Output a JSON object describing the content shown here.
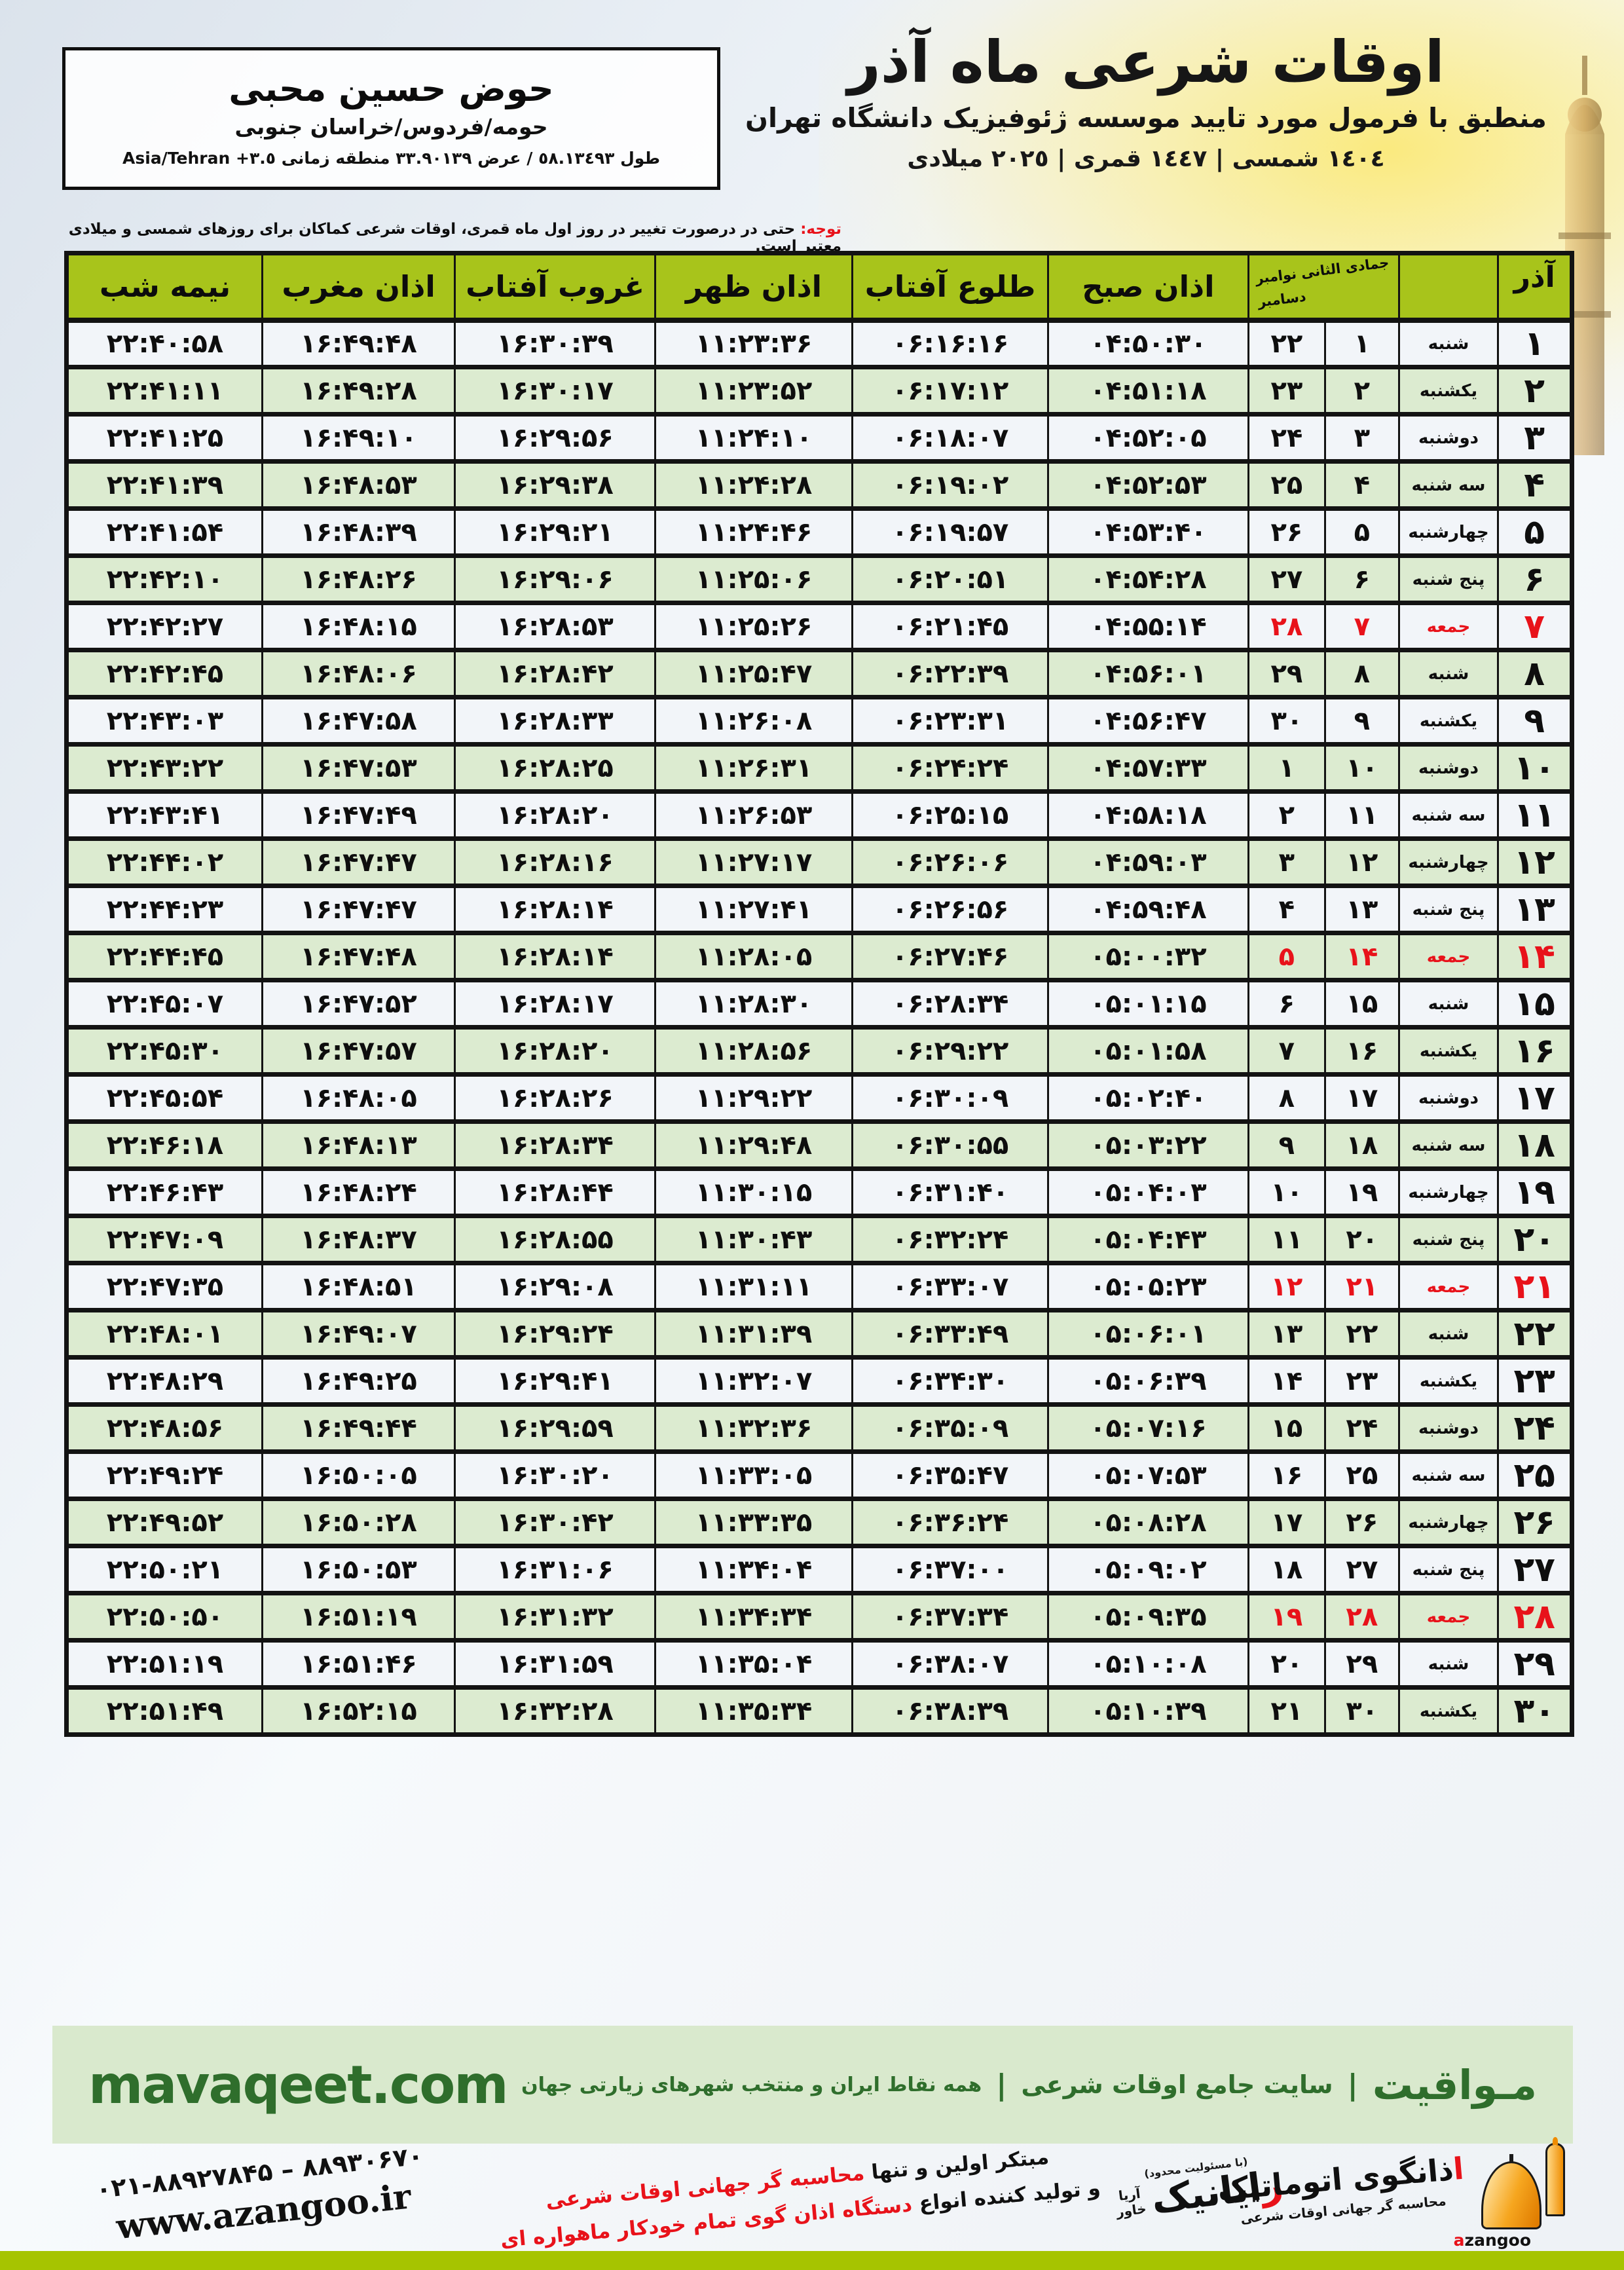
{
  "header": {
    "title": "اوقات شرعی ماه آذر",
    "subtitle": "منطبق با فرمول مورد تایید موسسه ژئوفیزیک دانشگاه تهران",
    "date_line": "١٤٠٤ شمسی | ١٤٤٧ قمری | ٢٠٢٥ میلادی"
  },
  "location_box": {
    "name": "حوض حسین محبی",
    "region": "حومه/فردوس/خراسان جنوبی",
    "coords": "طول ٥٨.١٣٤٩٣ / عرض ٣٣.٩٠١٣٩ منطقه زمانی",
    "timezone": "Asia/Tehran +٣.٥"
  },
  "notice": {
    "label": "توجه:",
    "text": " حتی در درصورت تغییر در روز اول ماه قمری، اوقات شرعی کماکان برای روزهای شمسی و میلادی معتبر است."
  },
  "table": {
    "month_label": "آذر",
    "sub_header_line1": "جمادی الثانی نوامبر",
    "sub_header_line2": "دسامبر",
    "columns": {
      "sobh": "اذان صبح",
      "tolu": "طلوع آفتاب",
      "zohr": "اذان ظهر",
      "ghorub": "غروب آفتاب",
      "maghreb": "اذان مغرب",
      "nimeshab": "نیمه شب"
    },
    "rows": [
      {
        "azar": "۱",
        "weekday": "شنبه",
        "lunar": "۱",
        "greg": "۲۲",
        "sobh": "۰۴:۵۰:۳۰",
        "tolu": "۰۶:۱۶:۱۶",
        "zohr": "۱۱:۲۳:۳۶",
        "ghorub": "۱۶:۳۰:۳۹",
        "maghreb": "۱۶:۴۹:۴۸",
        "nimeshab": "۲۲:۴۰:۵۸",
        "friday": false
      },
      {
        "azar": "۲",
        "weekday": "یکشنبه",
        "lunar": "۲",
        "greg": "۲۳",
        "sobh": "۰۴:۵۱:۱۸",
        "tolu": "۰۶:۱۷:۱۲",
        "zohr": "۱۱:۲۳:۵۲",
        "ghorub": "۱۶:۳۰:۱۷",
        "maghreb": "۱۶:۴۹:۲۸",
        "nimeshab": "۲۲:۴۱:۱۱",
        "friday": false
      },
      {
        "azar": "۳",
        "weekday": "دوشنبه",
        "lunar": "۳",
        "greg": "۲۴",
        "sobh": "۰۴:۵۲:۰۵",
        "tolu": "۰۶:۱۸:۰۷",
        "zohr": "۱۱:۲۴:۱۰",
        "ghorub": "۱۶:۲۹:۵۶",
        "maghreb": "۱۶:۴۹:۱۰",
        "nimeshab": "۲۲:۴۱:۲۵",
        "friday": false
      },
      {
        "azar": "۴",
        "weekday": "سه شنبه",
        "lunar": "۴",
        "greg": "۲۵",
        "sobh": "۰۴:۵۲:۵۳",
        "tolu": "۰۶:۱۹:۰۲",
        "zohr": "۱۱:۲۴:۲۸",
        "ghorub": "۱۶:۲۹:۳۸",
        "maghreb": "۱۶:۴۸:۵۳",
        "nimeshab": "۲۲:۴۱:۳۹",
        "friday": false
      },
      {
        "azar": "۵",
        "weekday": "چهارشنبه",
        "lunar": "۵",
        "greg": "۲۶",
        "sobh": "۰۴:۵۳:۴۰",
        "tolu": "۰۶:۱۹:۵۷",
        "zohr": "۱۱:۲۴:۴۶",
        "ghorub": "۱۶:۲۹:۲۱",
        "maghreb": "۱۶:۴۸:۳۹",
        "nimeshab": "۲۲:۴۱:۵۴",
        "friday": false
      },
      {
        "azar": "۶",
        "weekday": "پنج شنبه",
        "lunar": "۶",
        "greg": "۲۷",
        "sobh": "۰۴:۵۴:۲۸",
        "tolu": "۰۶:۲۰:۵۱",
        "zohr": "۱۱:۲۵:۰۶",
        "ghorub": "۱۶:۲۹:۰۶",
        "maghreb": "۱۶:۴۸:۲۶",
        "nimeshab": "۲۲:۴۲:۱۰",
        "friday": false
      },
      {
        "azar": "۷",
        "weekday": "جمعه",
        "lunar": "۷",
        "greg": "۲۸",
        "sobh": "۰۴:۵۵:۱۴",
        "tolu": "۰۶:۲۱:۴۵",
        "zohr": "۱۱:۲۵:۲۶",
        "ghorub": "۱۶:۲۸:۵۳",
        "maghreb": "۱۶:۴۸:۱۵",
        "nimeshab": "۲۲:۴۲:۲۷",
        "friday": true
      },
      {
        "azar": "۸",
        "weekday": "شنبه",
        "lunar": "۸",
        "greg": "۲۹",
        "sobh": "۰۴:۵۶:۰۱",
        "tolu": "۰۶:۲۲:۳۹",
        "zohr": "۱۱:۲۵:۴۷",
        "ghorub": "۱۶:۲۸:۴۲",
        "maghreb": "۱۶:۴۸:۰۶",
        "nimeshab": "۲۲:۴۲:۴۵",
        "friday": false
      },
      {
        "azar": "۹",
        "weekday": "یکشنبه",
        "lunar": "۹",
        "greg": "۳۰",
        "sobh": "۰۴:۵۶:۴۷",
        "tolu": "۰۶:۲۳:۳۱",
        "zohr": "۱۱:۲۶:۰۸",
        "ghorub": "۱۶:۲۸:۳۳",
        "maghreb": "۱۶:۴۷:۵۸",
        "nimeshab": "۲۲:۴۳:۰۳",
        "friday": false
      },
      {
        "azar": "۱۰",
        "weekday": "دوشنبه",
        "lunar": "۱۰",
        "greg": "۱",
        "sobh": "۰۴:۵۷:۳۳",
        "tolu": "۰۶:۲۴:۲۴",
        "zohr": "۱۱:۲۶:۳۱",
        "ghorub": "۱۶:۲۸:۲۵",
        "maghreb": "۱۶:۴۷:۵۳",
        "nimeshab": "۲۲:۴۳:۲۲",
        "friday": false
      },
      {
        "azar": "۱۱",
        "weekday": "سه شنبه",
        "lunar": "۱۱",
        "greg": "۲",
        "sobh": "۰۴:۵۸:۱۸",
        "tolu": "۰۶:۲۵:۱۵",
        "zohr": "۱۱:۲۶:۵۳",
        "ghorub": "۱۶:۲۸:۲۰",
        "maghreb": "۱۶:۴۷:۴۹",
        "nimeshab": "۲۲:۴۳:۴۱",
        "friday": false
      },
      {
        "azar": "۱۲",
        "weekday": "چهارشنبه",
        "lunar": "۱۲",
        "greg": "۳",
        "sobh": "۰۴:۵۹:۰۳",
        "tolu": "۰۶:۲۶:۰۶",
        "zohr": "۱۱:۲۷:۱۷",
        "ghorub": "۱۶:۲۸:۱۶",
        "maghreb": "۱۶:۴۷:۴۷",
        "nimeshab": "۲۲:۴۴:۰۲",
        "friday": false
      },
      {
        "azar": "۱۳",
        "weekday": "پنج شنبه",
        "lunar": "۱۳",
        "greg": "۴",
        "sobh": "۰۴:۵۹:۴۸",
        "tolu": "۰۶:۲۶:۵۶",
        "zohr": "۱۱:۲۷:۴۱",
        "ghorub": "۱۶:۲۸:۱۴",
        "maghreb": "۱۶:۴۷:۴۷",
        "nimeshab": "۲۲:۴۴:۲۳",
        "friday": false
      },
      {
        "azar": "۱۴",
        "weekday": "جمعه",
        "lunar": "۱۴",
        "greg": "۵",
        "sobh": "۰۵:۰۰:۳۲",
        "tolu": "۰۶:۲۷:۴۶",
        "zohr": "۱۱:۲۸:۰۵",
        "ghorub": "۱۶:۲۸:۱۴",
        "maghreb": "۱۶:۴۷:۴۸",
        "nimeshab": "۲۲:۴۴:۴۵",
        "friday": true
      },
      {
        "azar": "۱۵",
        "weekday": "شنبه",
        "lunar": "۱۵",
        "greg": "۶",
        "sobh": "۰۵:۰۱:۱۵",
        "tolu": "۰۶:۲۸:۳۴",
        "zohr": "۱۱:۲۸:۳۰",
        "ghorub": "۱۶:۲۸:۱۷",
        "maghreb": "۱۶:۴۷:۵۲",
        "nimeshab": "۲۲:۴۵:۰۷",
        "friday": false
      },
      {
        "azar": "۱۶",
        "weekday": "یکشنبه",
        "lunar": "۱۶",
        "greg": "۷",
        "sobh": "۰۵:۰۱:۵۸",
        "tolu": "۰۶:۲۹:۲۲",
        "zohr": "۱۱:۲۸:۵۶",
        "ghorub": "۱۶:۲۸:۲۰",
        "maghreb": "۱۶:۴۷:۵۷",
        "nimeshab": "۲۲:۴۵:۳۰",
        "friday": false
      },
      {
        "azar": "۱۷",
        "weekday": "دوشنبه",
        "lunar": "۱۷",
        "greg": "۸",
        "sobh": "۰۵:۰۲:۴۰",
        "tolu": "۰۶:۳۰:۰۹",
        "zohr": "۱۱:۲۹:۲۲",
        "ghorub": "۱۶:۲۸:۲۶",
        "maghreb": "۱۶:۴۸:۰۵",
        "nimeshab": "۲۲:۴۵:۵۴",
        "friday": false
      },
      {
        "azar": "۱۸",
        "weekday": "سه شنبه",
        "lunar": "۱۸",
        "greg": "۹",
        "sobh": "۰۵:۰۳:۲۲",
        "tolu": "۰۶:۳۰:۵۵",
        "zohr": "۱۱:۲۹:۴۸",
        "ghorub": "۱۶:۲۸:۳۴",
        "maghreb": "۱۶:۴۸:۱۳",
        "nimeshab": "۲۲:۴۶:۱۸",
        "friday": false
      },
      {
        "azar": "۱۹",
        "weekday": "چهارشنبه",
        "lunar": "۱۹",
        "greg": "۱۰",
        "sobh": "۰۵:۰۴:۰۳",
        "tolu": "۰۶:۳۱:۴۰",
        "zohr": "۱۱:۳۰:۱۵",
        "ghorub": "۱۶:۲۸:۴۴",
        "maghreb": "۱۶:۴۸:۲۴",
        "nimeshab": "۲۲:۴۶:۴۳",
        "friday": false
      },
      {
        "azar": "۲۰",
        "weekday": "پنج شنبه",
        "lunar": "۲۰",
        "greg": "۱۱",
        "sobh": "۰۵:۰۴:۴۳",
        "tolu": "۰۶:۳۲:۲۴",
        "zohr": "۱۱:۳۰:۴۳",
        "ghorub": "۱۶:۲۸:۵۵",
        "maghreb": "۱۶:۴۸:۳۷",
        "nimeshab": "۲۲:۴۷:۰۹",
        "friday": false
      },
      {
        "azar": "۲۱",
        "weekday": "جمعه",
        "lunar": "۲۱",
        "greg": "۱۲",
        "sobh": "۰۵:۰۵:۲۳",
        "tolu": "۰۶:۳۳:۰۷",
        "zohr": "۱۱:۳۱:۱۱",
        "ghorub": "۱۶:۲۹:۰۸",
        "maghreb": "۱۶:۴۸:۵۱",
        "nimeshab": "۲۲:۴۷:۳۵",
        "friday": true
      },
      {
        "azar": "۲۲",
        "weekday": "شنبه",
        "lunar": "۲۲",
        "greg": "۱۳",
        "sobh": "۰۵:۰۶:۰۱",
        "tolu": "۰۶:۳۳:۴۹",
        "zohr": "۱۱:۳۱:۳۹",
        "ghorub": "۱۶:۲۹:۲۴",
        "maghreb": "۱۶:۴۹:۰۷",
        "nimeshab": "۲۲:۴۸:۰۱",
        "friday": false
      },
      {
        "azar": "۲۳",
        "weekday": "یکشنبه",
        "lunar": "۲۳",
        "greg": "۱۴",
        "sobh": "۰۵:۰۶:۳۹",
        "tolu": "۰۶:۳۴:۳۰",
        "zohr": "۱۱:۳۲:۰۷",
        "ghorub": "۱۶:۲۹:۴۱",
        "maghreb": "۱۶:۴۹:۲۵",
        "nimeshab": "۲۲:۴۸:۲۹",
        "friday": false
      },
      {
        "azar": "۲۴",
        "weekday": "دوشنبه",
        "lunar": "۲۴",
        "greg": "۱۵",
        "sobh": "۰۵:۰۷:۱۶",
        "tolu": "۰۶:۳۵:۰۹",
        "zohr": "۱۱:۳۲:۳۶",
        "ghorub": "۱۶:۲۹:۵۹",
        "maghreb": "۱۶:۴۹:۴۴",
        "nimeshab": "۲۲:۴۸:۵۶",
        "friday": false
      },
      {
        "azar": "۲۵",
        "weekday": "سه شنبه",
        "lunar": "۲۵",
        "greg": "۱۶",
        "sobh": "۰۵:۰۷:۵۳",
        "tolu": "۰۶:۳۵:۴۷",
        "zohr": "۱۱:۳۳:۰۵",
        "ghorub": "۱۶:۳۰:۲۰",
        "maghreb": "۱۶:۵۰:۰۵",
        "nimeshab": "۲۲:۴۹:۲۴",
        "friday": false
      },
      {
        "azar": "۲۶",
        "weekday": "چهارشنبه",
        "lunar": "۲۶",
        "greg": "۱۷",
        "sobh": "۰۵:۰۸:۲۸",
        "tolu": "۰۶:۳۶:۲۴",
        "zohr": "۱۱:۳۳:۳۵",
        "ghorub": "۱۶:۳۰:۴۲",
        "maghreb": "۱۶:۵۰:۲۸",
        "nimeshab": "۲۲:۴۹:۵۲",
        "friday": false
      },
      {
        "azar": "۲۷",
        "weekday": "پنج شنبه",
        "lunar": "۲۷",
        "greg": "۱۸",
        "sobh": "۰۵:۰۹:۰۲",
        "tolu": "۰۶:۳۷:۰۰",
        "zohr": "۱۱:۳۴:۰۴",
        "ghorub": "۱۶:۳۱:۰۶",
        "maghreb": "۱۶:۵۰:۵۳",
        "nimeshab": "۲۲:۵۰:۲۱",
        "friday": false
      },
      {
        "azar": "۲۸",
        "weekday": "جمعه",
        "lunar": "۲۸",
        "greg": "۱۹",
        "sobh": "۰۵:۰۹:۳۵",
        "tolu": "۰۶:۳۷:۳۴",
        "zohr": "۱۱:۳۴:۳۴",
        "ghorub": "۱۶:۳۱:۳۲",
        "maghreb": "۱۶:۵۱:۱۹",
        "nimeshab": "۲۲:۵۰:۵۰",
        "friday": true
      },
      {
        "azar": "۲۹",
        "weekday": "شنبه",
        "lunar": "۲۹",
        "greg": "۲۰",
        "sobh": "۰۵:۱۰:۰۸",
        "tolu": "۰۶:۳۸:۰۷",
        "zohr": "۱۱:۳۵:۰۴",
        "ghorub": "۱۶:۳۱:۵۹",
        "maghreb": "۱۶:۵۱:۴۶",
        "nimeshab": "۲۲:۵۱:۱۹",
        "friday": false
      },
      {
        "azar": "۳۰",
        "weekday": "یکشنبه",
        "lunar": "۳۰",
        "greg": "۲۱",
        "sobh": "۰۵:۱۰:۳۹",
        "tolu": "۰۶:۳۸:۳۹",
        "zohr": "۱۱:۳۵:۳۴",
        "ghorub": "۱۶:۳۲:۲۸",
        "maghreb": "۱۶:۵۲:۱۵",
        "nimeshab": "۲۲:۵۱:۴۹",
        "friday": false
      }
    ]
  },
  "footer_band": {
    "site_en": "mavaqeet.com",
    "brand": "مـواقیت",
    "separator": "|",
    "tagline1": "سایت جامع اوقات شرعی",
    "tagline2": "همه نقاط ایران و منتخب شهرهای زیارتی جهان"
  },
  "footer": {
    "phone": "۰۲۱-۸۸۹۲۷۸۴۵ – ۸۸۹۳۰۶۷۰",
    "website": "www.azangoo.ir",
    "slogan_l1_black": "مبتکر اولین و تنها ",
    "slogan_l1_red": "محاسبه گر جهانی اوقات شرعی",
    "slogan_l2_black": "و تولید کننده انواع ",
    "slogan_l2_red": "دستگاه اذان گوی تمام خودکار ماهواره ای",
    "rayanik_note": "(با مسئولیت محدود)",
    "rayanik_first": "ر",
    "rayanik_rest": "ایانیک",
    "rayanik_side_top": "آریا",
    "rayanik_side_bottom": "خاور",
    "azangoo_first": "ا",
    "azangoo_rest": "ذانگوی اتوماتیک",
    "azangoo_sub": "محاسبه گر جهانی اوقات شرعی",
    "azangoo_word_first": "a",
    "azangoo_word_rest": "zangoo"
  },
  "colors": {
    "header_green": "#a8c41b",
    "row_green": "#dcebd0",
    "row_light": "#f2f5f9",
    "accent_red": "#e8121a",
    "band_bg": "#d9e9cd",
    "band_text": "#2f6e2c",
    "bottom_bar": "#a6c400",
    "border_black": "#131313",
    "orange": "#f08a00"
  }
}
